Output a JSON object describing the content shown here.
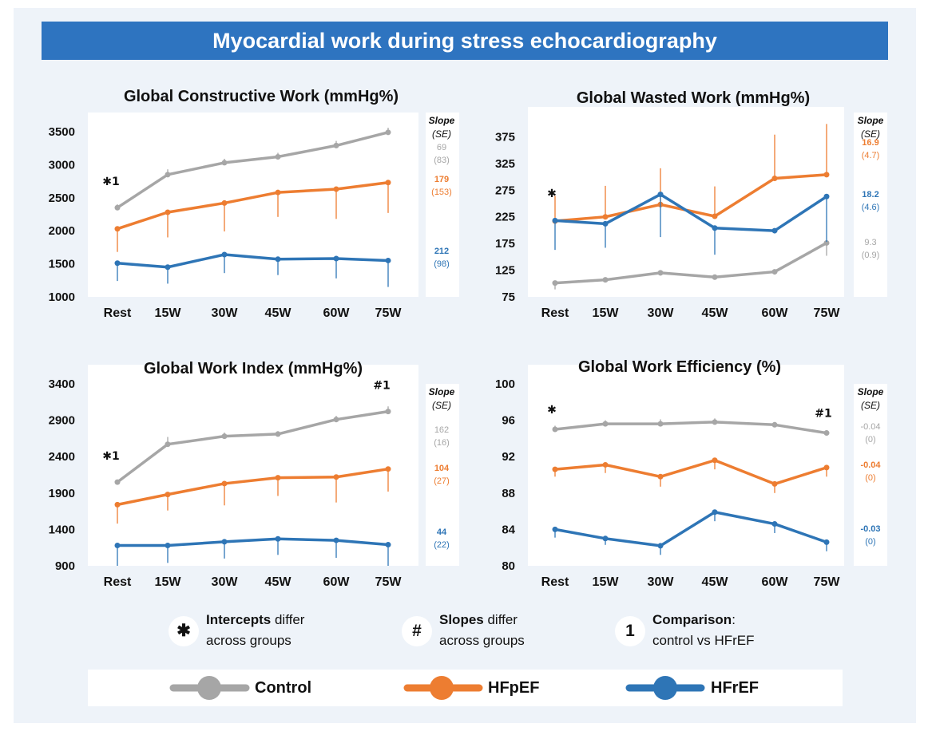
{
  "banner_title": "Myocardial work during stress echocardiography",
  "slope_header": "Slope",
  "se_header": "(SE)",
  "legend": [
    {
      "label": "Control",
      "color": "#a6a6a6"
    },
    {
      "label": "HFpEF",
      "color": "#ed7d31"
    },
    {
      "label": "HFrEF",
      "color": "#2e75b6"
    }
  ],
  "notes": {
    "intercepts": {
      "symbol": "✱",
      "bold": "Intercepts",
      "rest": " differ",
      "line2": "across groups"
    },
    "slopes": {
      "symbol": "#",
      "bold": "Slopes",
      "rest": " differ",
      "line2": "across groups"
    },
    "comparison": {
      "symbol": "1",
      "bold": "Comparison",
      "rest": ":",
      "line2": "control vs HFrEF"
    }
  },
  "chart_data": [
    {
      "type": "line",
      "title": "Global Constructive Work (mmHg%)",
      "categories": [
        "Rest",
        "15W",
        "30W",
        "45W",
        "60W",
        "75W"
      ],
      "ylim": [
        1000,
        3500
      ],
      "yticks": [
        "1000",
        "1500",
        "2000",
        "2500",
        "3000",
        "3500"
      ],
      "series": [
        {
          "name": "Control",
          "values": [
            2350,
            2850,
            3030,
            3120,
            3290,
            3490
          ],
          "err_up": [
            50,
            80,
            60,
            60,
            70,
            70
          ],
          "err_down": [
            0,
            0,
            0,
            0,
            0,
            0
          ]
        },
        {
          "name": "HFpEF",
          "values": [
            2030,
            2280,
            2420,
            2580,
            2630,
            2730
          ],
          "err_up": [
            0,
            0,
            0,
            0,
            0,
            0
          ],
          "err_down": [
            350,
            380,
            430,
            370,
            450,
            460
          ]
        },
        {
          "name": "HFrEF",
          "values": [
            1510,
            1450,
            1640,
            1570,
            1580,
            1550
          ],
          "err_up": [
            0,
            0,
            0,
            0,
            0,
            0
          ],
          "err_down": [
            270,
            250,
            280,
            240,
            300,
            400
          ]
        }
      ],
      "slopes": [
        {
          "series": "Control",
          "slope": "69",
          "se": "(83)"
        },
        {
          "series": "HFpEF",
          "slope": "179",
          "se": "(153)"
        },
        {
          "series": "HFrEF",
          "slope": "212",
          "se": "(98)"
        }
      ],
      "annotations": [
        {
          "text": "✱1",
          "category": "Rest",
          "series": "Control"
        }
      ]
    },
    {
      "type": "line",
      "title": "Global Wasted Work (mmHg%)",
      "categories": [
        "Rest",
        "15W",
        "30W",
        "45W",
        "60W",
        "75W"
      ],
      "ylim": [
        75,
        395
      ],
      "yticks": [
        "75",
        "125",
        "175",
        "225",
        "275",
        "325",
        "375"
      ],
      "series": [
        {
          "name": "Control",
          "values": [
            101,
            107,
            120,
            112,
            122,
            176
          ],
          "err_up": [
            0,
            0,
            0,
            0,
            0,
            0
          ],
          "err_down": [
            12,
            5,
            5,
            5,
            5,
            24
          ]
        },
        {
          "name": "HFpEF",
          "values": [
            217,
            225,
            248,
            226,
            297,
            304
          ],
          "err_up": [
            47,
            58,
            68,
            56,
            82,
            95
          ],
          "err_down": [
            0,
            0,
            0,
            0,
            0,
            0
          ]
        },
        {
          "name": "HFrEF",
          "values": [
            218,
            212,
            267,
            204,
            199,
            263
          ],
          "err_up": [
            0,
            0,
            0,
            0,
            0,
            0
          ],
          "err_down": [
            55,
            45,
            80,
            50,
            0,
            85
          ]
        }
      ],
      "slopes": [
        {
          "series": "HFpEF",
          "slope": "16.9",
          "se": "(4.7)"
        },
        {
          "series": "HFrEF",
          "slope": "18.2",
          "se": "(4.6)"
        },
        {
          "series": "Control",
          "slope": "9.3",
          "se": "(0.9)"
        }
      ],
      "annotations": [
        {
          "text": "✱",
          "category": "Rest",
          "series": "HFpEF"
        }
      ]
    },
    {
      "type": "line",
      "title": "Global Work Index (mmHg%)",
      "categories": [
        "Rest",
        "15W",
        "30W",
        "45W",
        "60W",
        "75W"
      ],
      "ylim": [
        900,
        3400
      ],
      "yticks": [
        "900",
        "1400",
        "1900",
        "2400",
        "2900",
        "3400"
      ],
      "series": [
        {
          "name": "Control",
          "values": [
            2050,
            2570,
            2680,
            2710,
            2910,
            3020
          ],
          "err_up": [
            0,
            100,
            50,
            40,
            50,
            70
          ],
          "err_down": [
            0,
            0,
            0,
            0,
            0,
            0
          ]
        },
        {
          "name": "HFpEF",
          "values": [
            1740,
            1880,
            2030,
            2110,
            2120,
            2230
          ],
          "err_up": [
            0,
            0,
            0,
            0,
            0,
            0
          ],
          "err_down": [
            260,
            220,
            300,
            250,
            350,
            310
          ]
        },
        {
          "name": "HFrEF",
          "values": [
            1180,
            1180,
            1230,
            1270,
            1250,
            1190
          ],
          "err_up": [
            0,
            0,
            0,
            0,
            0,
            0
          ],
          "err_down": [
            280,
            240,
            230,
            220,
            240,
            290
          ]
        }
      ],
      "slopes": [
        {
          "series": "Control",
          "slope": "162",
          "se": "(16)"
        },
        {
          "series": "HFpEF",
          "slope": "104",
          "se": "(27)"
        },
        {
          "series": "HFrEF",
          "slope": "44",
          "se": "(22)"
        }
      ],
      "annotations": [
        {
          "text": "✱1",
          "category": "Rest",
          "series": "Control"
        },
        {
          "text": "#1",
          "category": "75W",
          "series": "Control"
        }
      ]
    },
    {
      "type": "line",
      "title": "Global Work Efficiency (%)",
      "categories": [
        "Rest",
        "15W",
        "30W",
        "45W",
        "60W",
        "75W"
      ],
      "ylim": [
        80,
        100
      ],
      "yticks": [
        "80",
        "84",
        "88",
        "92",
        "96",
        "100"
      ],
      "series": [
        {
          "name": "Control",
          "values": [
            95.0,
            95.6,
            95.6,
            95.8,
            95.5,
            94.6
          ],
          "err_up": [
            0.4,
            0.4,
            0.5,
            0.4,
            0.3,
            0.3
          ],
          "err_down": [
            0,
            0,
            0,
            0,
            0,
            0
          ]
        },
        {
          "name": "HFpEF",
          "values": [
            90.6,
            91.1,
            89.8,
            91.6,
            89.0,
            90.8
          ],
          "err_up": [
            0,
            0,
            0,
            0,
            0,
            0
          ],
          "err_down": [
            0.8,
            0.9,
            1.1,
            1.0,
            1.0,
            1.0
          ]
        },
        {
          "name": "HFrEF",
          "values": [
            84.0,
            83.0,
            82.2,
            85.9,
            84.6,
            82.6
          ],
          "err_up": [
            0,
            0,
            0,
            0,
            0,
            0
          ],
          "err_down": [
            0.9,
            0.7,
            1.0,
            1.0,
            1.0,
            1.0
          ]
        }
      ],
      "slopes": [
        {
          "series": "Control",
          "slope": "-0.04",
          "se": "(0)"
        },
        {
          "series": "HFpEF",
          "slope": "-0.04",
          "se": "(0)"
        },
        {
          "series": "HFrEF",
          "slope": "-0.03",
          "se": "(0)"
        }
      ],
      "annotations": [
        {
          "text": "✱",
          "category": "Rest",
          "series": "Control"
        },
        {
          "text": "#1",
          "category": "75W",
          "series": "Control"
        }
      ]
    }
  ]
}
